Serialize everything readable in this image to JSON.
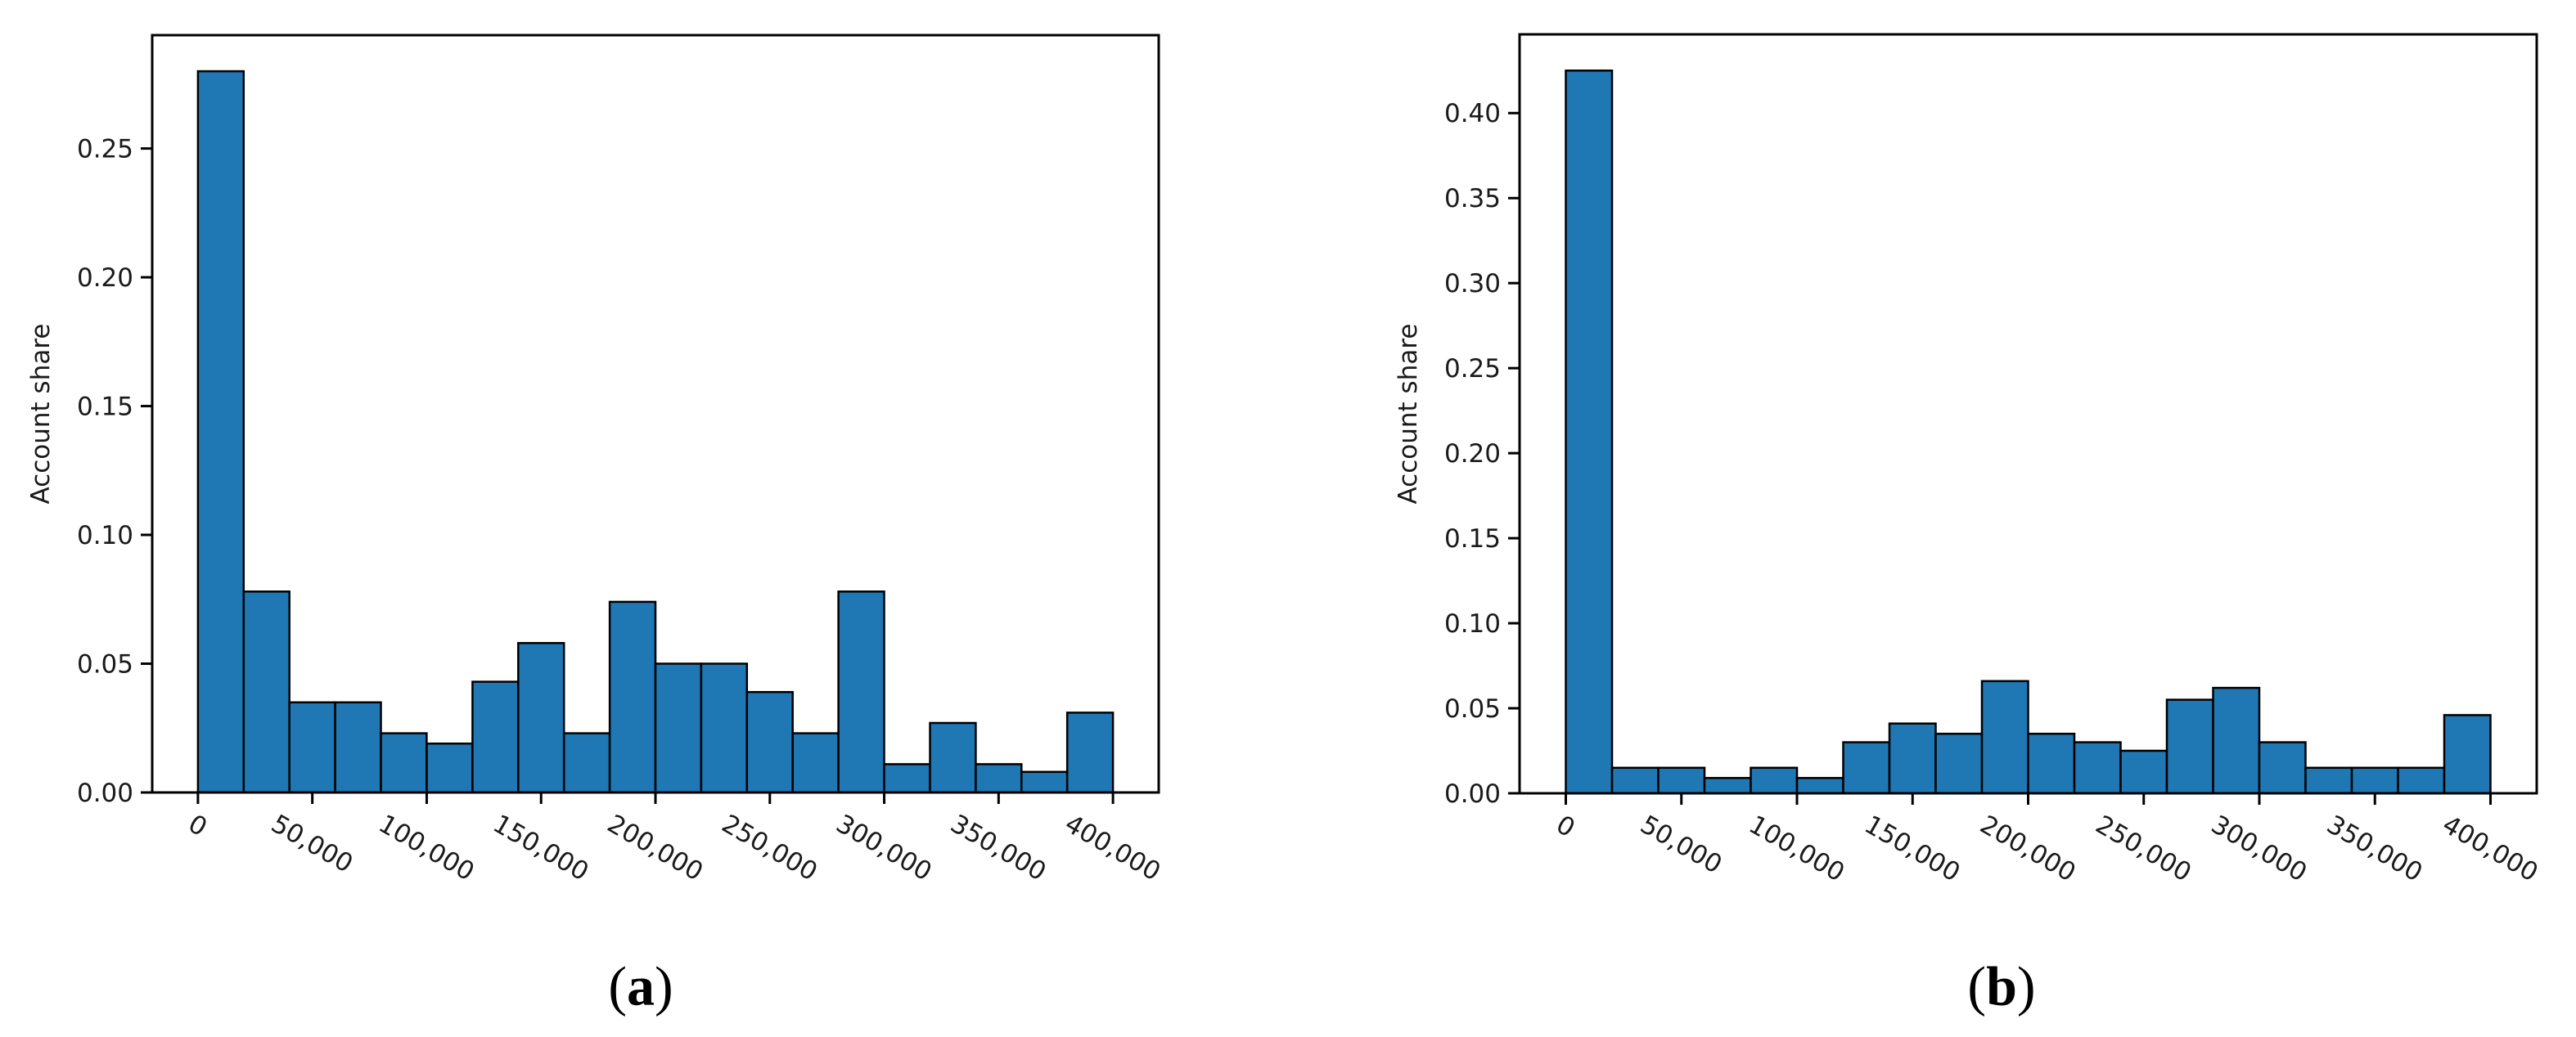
{
  "figure": {
    "background": "#ffffff",
    "bar_fill": "#1f77b4",
    "bar_edge": "#000000",
    "axis_color": "#000000",
    "text_color": "#1a1a1a"
  },
  "chart_data": [
    {
      "type": "bar",
      "subtype": "histogram",
      "caption": "(a)",
      "caption_open": "(",
      "caption_letter": "a",
      "caption_close": ")",
      "title": "",
      "xlabel": "",
      "ylabel": "Account share",
      "grid": false,
      "legend": null,
      "bin_start": 0,
      "bin_width": 20000,
      "values": [
        0.28,
        0.078,
        0.035,
        0.035,
        0.023,
        0.019,
        0.043,
        0.058,
        0.023,
        0.074,
        0.05,
        0.05,
        0.039,
        0.023,
        0.078,
        0.011,
        0.027,
        0.011,
        0.008,
        0.031
      ],
      "x_tick_values": [
        0,
        50000,
        100000,
        150000,
        200000,
        250000,
        300000,
        350000,
        400000
      ],
      "x_tick_labels": [
        "0",
        "50,000",
        "100,000",
        "150,000",
        "200,000",
        "250,000",
        "300,000",
        "350,000",
        "400,000"
      ],
      "y_tick_values": [
        0.0,
        0.05,
        0.1,
        0.15,
        0.2,
        0.25
      ],
      "y_tick_labels": [
        "0.00",
        "0.05",
        "0.10",
        "0.15",
        "0.20",
        "0.25"
      ],
      "xlim": [
        -20000,
        420000
      ],
      "ylim": [
        0,
        0.294
      ]
    },
    {
      "type": "bar",
      "subtype": "histogram",
      "caption": "(b)",
      "caption_open": "(",
      "caption_letter": "b",
      "caption_close": ")",
      "title": "",
      "xlabel": "",
      "ylabel": "Account share",
      "grid": false,
      "legend": null,
      "bin_start": 0,
      "bin_width": 20000,
      "values": [
        0.425,
        0.015,
        0.015,
        0.009,
        0.015,
        0.009,
        0.03,
        0.041,
        0.035,
        0.066,
        0.035,
        0.03,
        0.025,
        0.055,
        0.062,
        0.03,
        0.015,
        0.015,
        0.015,
        0.046
      ],
      "x_tick_values": [
        0,
        50000,
        100000,
        150000,
        200000,
        250000,
        300000,
        350000,
        400000
      ],
      "x_tick_labels": [
        "0",
        "50,000",
        "100,000",
        "150,000",
        "200,000",
        "250,000",
        "300,000",
        "350,000",
        "400,000"
      ],
      "y_tick_values": [
        0.0,
        0.05,
        0.1,
        0.15,
        0.2,
        0.25,
        0.3,
        0.35,
        0.4
      ],
      "y_tick_labels": [
        "0.00",
        "0.05",
        "0.10",
        "0.15",
        "0.20",
        "0.25",
        "0.30",
        "0.35",
        "0.40"
      ],
      "xlim": [
        -20000,
        420000
      ],
      "ylim": [
        0,
        0.4463
      ]
    }
  ]
}
